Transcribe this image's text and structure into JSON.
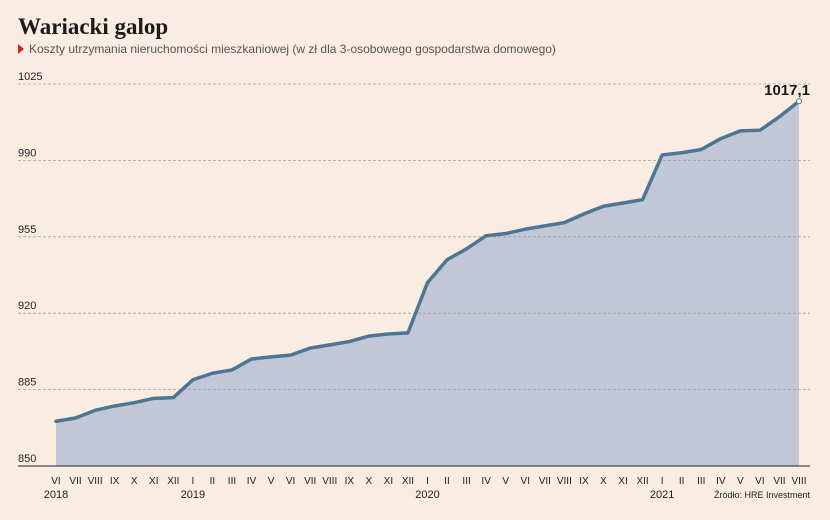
{
  "title": "Wariacki galop",
  "subtitle": "Koszty utrzymania nieruchomości mieszkaniowej (w zł dla 3-osobowego gospodarstwa domowego)",
  "source": "Źródło: HRE Investment",
  "colors": {
    "background": "#f9ede1",
    "line": "#4d7694",
    "area": "#c1c7d6",
    "grid": "#a0a0a0",
    "marker": "#d9241b"
  },
  "chart_data": {
    "type": "area",
    "ylim": [
      850,
      1025
    ],
    "yticks": [
      850,
      885,
      920,
      955,
      990,
      1025
    ],
    "grid": "horizontal-dashed",
    "x": [
      "VI",
      "VII",
      "VIII",
      "IX",
      "X",
      "XI",
      "XII",
      "I",
      "II",
      "III",
      "IV",
      "V",
      "VI",
      "VII",
      "VIII",
      "IX",
      "X",
      "XI",
      "XII",
      "I",
      "II",
      "III",
      "IV",
      "V",
      "VI",
      "VII",
      "VIII",
      "IX",
      "X",
      "XI",
      "XII",
      "I",
      "II",
      "III",
      "IV",
      "V",
      "VI",
      "VII",
      "VIII"
    ],
    "year_labels": [
      {
        "index": 0,
        "label": "2018"
      },
      {
        "index": 7,
        "label": "2019"
      },
      {
        "index": 19,
        "label": "2020"
      },
      {
        "index": 31,
        "label": "2021"
      }
    ],
    "values": [
      870.5,
      872,
      875.5,
      877.5,
      879,
      881,
      881.3,
      889.5,
      892.5,
      894,
      899,
      900,
      900.8,
      904,
      905.5,
      907,
      909.5,
      910.5,
      911,
      934,
      944.5,
      949.5,
      955.5,
      956.5,
      958.5,
      960,
      961.5,
      965.5,
      969,
      970.5,
      972,
      992.5,
      993.5,
      995,
      1000,
      1003.5,
      1003.8,
      1010,
      1017.1
    ],
    "last_value_label": "1017,1"
  }
}
